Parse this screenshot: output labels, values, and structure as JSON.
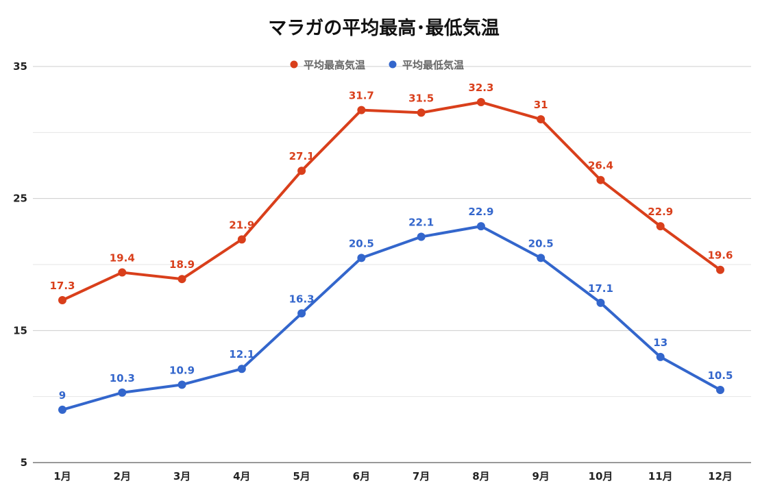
{
  "chart_data": {
    "type": "line",
    "title": "マラガの平均最高･最低気温",
    "categories": [
      "1月",
      "2月",
      "3月",
      "4月",
      "5月",
      "6月",
      "7月",
      "8月",
      "9月",
      "10月",
      "11月",
      "12月"
    ],
    "series": [
      {
        "name": "平均最高気温",
        "color": "#d93f1b",
        "values": [
          17.3,
          19.4,
          18.9,
          21.9,
          27.1,
          31.7,
          31.5,
          32.3,
          31,
          26.4,
          22.9,
          19.6
        ]
      },
      {
        "name": "平均最低気温",
        "color": "#3366cc",
        "values": [
          9,
          10.3,
          10.9,
          12.1,
          16.3,
          20.5,
          22.1,
          22.9,
          20.5,
          17.1,
          13,
          10.5
        ]
      }
    ],
    "ylim": [
      5,
      35
    ],
    "y_ticks": [
      5,
      15,
      25,
      35
    ],
    "grid": true,
    "legend": "top-center",
    "xlabel": "",
    "ylabel": ""
  }
}
